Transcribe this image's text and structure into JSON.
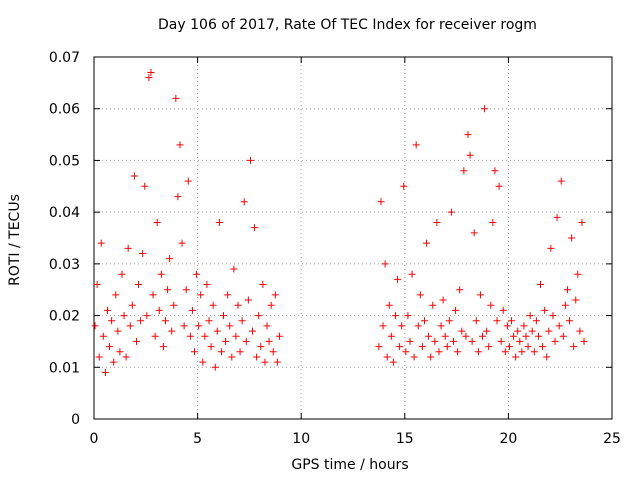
{
  "chart_data": {
    "type": "scatter",
    "title": "Day 106 of 2017, Rate Of TEC Index for receiver rogm",
    "xlabel": "GPS time / hours",
    "ylabel": "ROTI / TECUs",
    "xlim": [
      0,
      25
    ],
    "ylim": [
      0,
      0.07
    ],
    "xticks": [
      "0",
      "5",
      "10",
      "15",
      "20",
      "25"
    ],
    "yticks": [
      "0",
      "0.01",
      "0.02",
      "0.03",
      "0.04",
      "0.05",
      "0.06",
      "0.07"
    ],
    "grid": true,
    "marker": "+",
    "color": "#ff0000",
    "series": [
      {
        "x": [
          0.05,
          0.15,
          0.25,
          0.35,
          0.45,
          0.55,
          0.65,
          0.75,
          0.85,
          0.95,
          1.05,
          1.15,
          1.25,
          1.35,
          1.45,
          1.55,
          1.65,
          1.75,
          1.85,
          1.95,
          2.05,
          2.15,
          2.25,
          2.35,
          2.45,
          2.55,
          2.65,
          2.75,
          2.85,
          2.95,
          3.05,
          3.15,
          3.25,
          3.35,
          3.45,
          3.55,
          3.65,
          3.75,
          3.85,
          3.95,
          4.05,
          4.15,
          4.25,
          4.35,
          4.45,
          4.55,
          4.65,
          4.75,
          4.85,
          4.95,
          5.05,
          5.15,
          5.25,
          5.35,
          5.45,
          5.55,
          5.65,
          5.75,
          5.85,
          5.95,
          6.05,
          6.15,
          6.25,
          6.35,
          6.45,
          6.55,
          6.65,
          6.75,
          6.85,
          6.95,
          7.05,
          7.15,
          7.25,
          7.35,
          7.45,
          7.55,
          7.65,
          7.75,
          7.85,
          7.95,
          8.05,
          8.15,
          8.25,
          8.35,
          8.45,
          8.55,
          8.65,
          8.75,
          8.85,
          8.95,
          13.75,
          13.85,
          13.95,
          14.05,
          14.15,
          14.25,
          14.35,
          14.45,
          14.55,
          14.65,
          14.75,
          14.85,
          14.95,
          15.05,
          15.15,
          15.25,
          15.35,
          15.45,
          15.55,
          15.65,
          15.75,
          15.85,
          15.95,
          16.05,
          16.15,
          16.25,
          16.35,
          16.45,
          16.55,
          16.65,
          16.75,
          16.85,
          16.95,
          17.05,
          17.15,
          17.25,
          17.35,
          17.45,
          17.55,
          17.65,
          17.75,
          17.85,
          17.95,
          18.05,
          18.15,
          18.25,
          18.35,
          18.45,
          18.55,
          18.65,
          18.75,
          18.85,
          18.95,
          19.05,
          19.15,
          19.25,
          19.35,
          19.45,
          19.55,
          19.65,
          19.75,
          19.85,
          19.95,
          20.05,
          20.15,
          20.25,
          20.35,
          20.45,
          20.55,
          20.65,
          20.75,
          20.85,
          20.95,
          21.05,
          21.15,
          21.25,
          21.35,
          21.45,
          21.55,
          21.65,
          21.75,
          21.85,
          21.95,
          22.05,
          22.15,
          22.25,
          22.35,
          22.45,
          22.55,
          22.65,
          22.75,
          22.85,
          22.95,
          23.05,
          23.15,
          23.25,
          23.35,
          23.45,
          23.55,
          23.65
        ],
        "y": [
          0.018,
          0.026,
          0.012,
          0.034,
          0.016,
          0.009,
          0.021,
          0.014,
          0.019,
          0.011,
          0.024,
          0.017,
          0.013,
          0.028,
          0.02,
          0.012,
          0.033,
          0.018,
          0.022,
          0.047,
          0.015,
          0.026,
          0.019,
          0.032,
          0.045,
          0.02,
          0.066,
          0.067,
          0.024,
          0.016,
          0.038,
          0.021,
          0.028,
          0.014,
          0.019,
          0.025,
          0.031,
          0.017,
          0.022,
          0.062,
          0.043,
          0.053,
          0.034,
          0.018,
          0.025,
          0.046,
          0.016,
          0.021,
          0.013,
          0.028,
          0.018,
          0.024,
          0.011,
          0.016,
          0.026,
          0.019,
          0.014,
          0.022,
          0.01,
          0.017,
          0.038,
          0.013,
          0.02,
          0.015,
          0.024,
          0.018,
          0.012,
          0.029,
          0.016,
          0.022,
          0.013,
          0.019,
          0.042,
          0.015,
          0.023,
          0.05,
          0.017,
          0.037,
          0.012,
          0.02,
          0.014,
          0.026,
          0.011,
          0.018,
          0.015,
          0.022,
          0.013,
          0.024,
          0.011,
          0.016,
          0.014,
          0.042,
          0.018,
          0.03,
          0.012,
          0.022,
          0.016,
          0.011,
          0.02,
          0.027,
          0.014,
          0.018,
          0.045,
          0.013,
          0.02,
          0.015,
          0.028,
          0.012,
          0.053,
          0.018,
          0.024,
          0.014,
          0.019,
          0.034,
          0.016,
          0.012,
          0.022,
          0.015,
          0.038,
          0.013,
          0.018,
          0.023,
          0.016,
          0.014,
          0.019,
          0.04,
          0.015,
          0.021,
          0.013,
          0.025,
          0.017,
          0.048,
          0.016,
          0.055,
          0.051,
          0.015,
          0.036,
          0.019,
          0.013,
          0.024,
          0.016,
          0.06,
          0.017,
          0.014,
          0.022,
          0.038,
          0.048,
          0.019,
          0.045,
          0.015,
          0.021,
          0.013,
          0.018,
          0.014,
          0.019,
          0.016,
          0.012,
          0.017,
          0.015,
          0.013,
          0.018,
          0.016,
          0.014,
          0.02,
          0.017,
          0.013,
          0.019,
          0.016,
          0.026,
          0.014,
          0.021,
          0.012,
          0.017,
          0.033,
          0.02,
          0.015,
          0.039,
          0.018,
          0.046,
          0.016,
          0.022,
          0.025,
          0.019,
          0.035,
          0.014,
          0.023,
          0.028,
          0.017,
          0.038,
          0.015
        ]
      }
    ]
  }
}
